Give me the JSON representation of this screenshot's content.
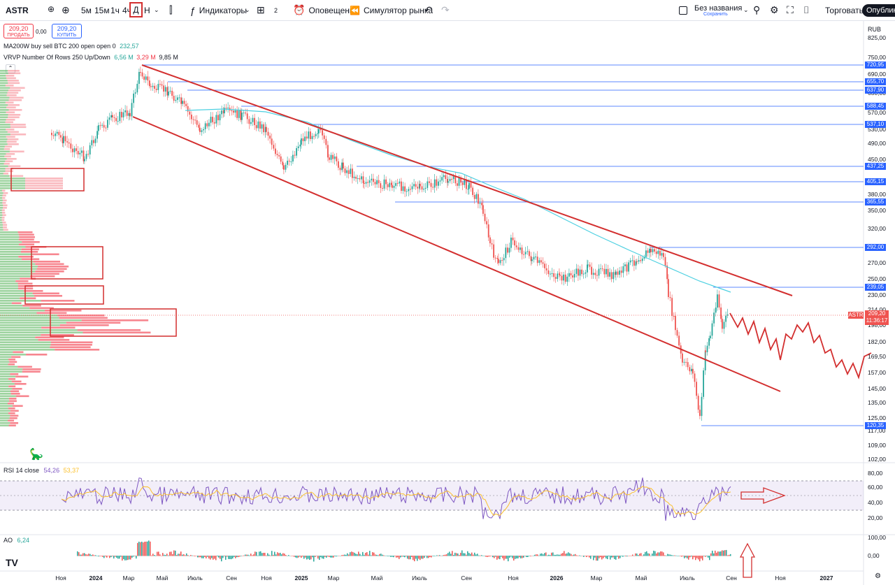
{
  "toolbar": {
    "symbol": "ASTR",
    "intervals": [
      "5м",
      "15м",
      "1ч",
      "4ч",
      "Д",
      "Н"
    ],
    "indicators_label": "Индикаторы",
    "layouts_count": "2",
    "alerts_label": "Оповещения",
    "replay_label": "Симулятор рынка",
    "layout_name": "Без названия",
    "layout_saved": "Сохранить",
    "trade_label": "Торговать",
    "publish_label": "Опубликовать"
  },
  "order_buttons": {
    "sell_price": "209,20",
    "sell_label": "ПРОДАТЬ",
    "spread": "0,00",
    "buy_price": "209,20",
    "buy_label": "КУПИТЬ"
  },
  "legend": {
    "ma_text": "MA200W buy sell BTC 200 open open 0",
    "ma_value": "232,57",
    "vrvp_text": "VRVP Number Of Rows 250 Up/Down",
    "vrvp_up": "6,56 M",
    "vrvp_down": "3,29 M",
    "vrvp_total": "9,85 M"
  },
  "currency": "RUB",
  "price_axis_ticks": [
    "825,00",
    "750,00",
    "690,00",
    "630,00",
    "570,00",
    "530,00",
    "490,00",
    "450,00",
    "380,00",
    "350,00",
    "320,00",
    "290,00",
    "270,00",
    "250,00",
    "230,00",
    "214,00",
    "198,00",
    "182,00",
    "169,50",
    "157,00",
    "145,00",
    "135,00",
    "125,00",
    "117,00",
    "109,00",
    "102,00"
  ],
  "level_labels": [
    "720,95",
    "655,70",
    "637,90",
    "588,45",
    "537,10",
    "437,25",
    "405,15",
    "365,55",
    "292,00",
    "239,05",
    "120,35"
  ],
  "last_price": {
    "symbol": "ASTR",
    "price": "209,20",
    "countdown": "11:36:17"
  },
  "time_axis": [
    "Ноя",
    "2024",
    "Мар",
    "Май",
    "Июль",
    "Сен",
    "Ноя",
    "2025",
    "Мар",
    "Май",
    "Июль",
    "Сен",
    "Ноя",
    "2026",
    "Мар",
    "Май",
    "Июль",
    "Сен",
    "Ноя",
    "2027"
  ],
  "rsi": {
    "label": "RSI 14 close",
    "value": "54,26",
    "ma_value": "53,37",
    "ticks": [
      "80,00",
      "60,00",
      "40,00",
      "20,00"
    ]
  },
  "ao": {
    "label": "AO",
    "value": "6,24",
    "ticks": [
      "100,00",
      "0,00"
    ]
  },
  "colors": {
    "up": "#26a69a",
    "down": "#ef5350",
    "drawing_red": "#d32f2f",
    "ma_line": "#4dd0e1",
    "level_line": "#2962ff",
    "rsi_line": "#7e57c2",
    "volume_up": "#4caf50",
    "volume_down": "#f23645"
  }
}
